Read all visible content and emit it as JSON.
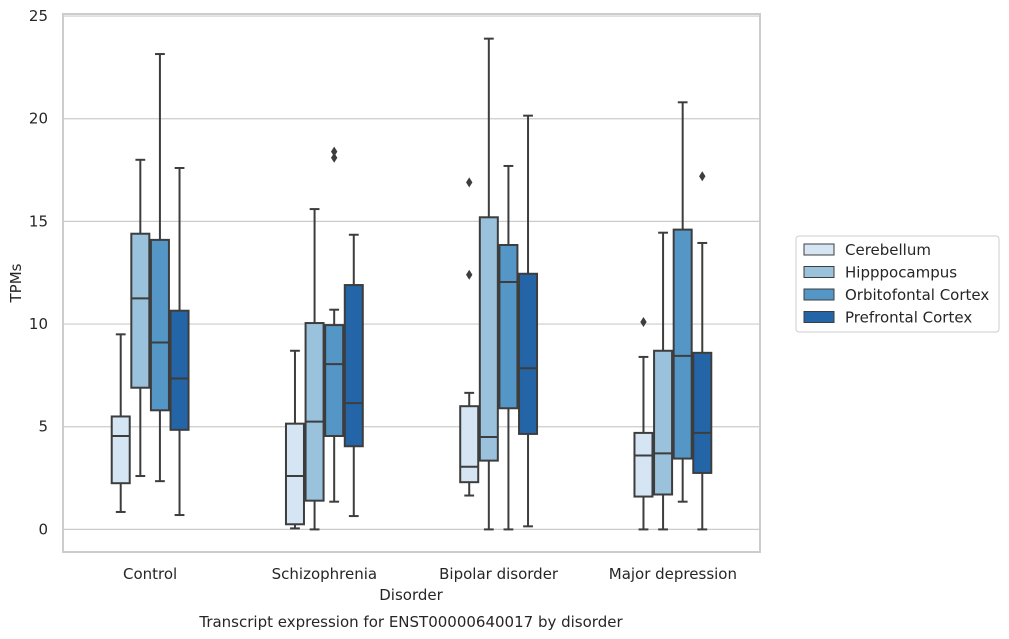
{
  "chart_data": {
    "type": "box",
    "title": "",
    "caption": "Transcript expression for ENST00000640017 by disorder",
    "xlabel": "Disorder",
    "ylabel": "TPMs",
    "ylim": [
      -1.1,
      25.1
    ],
    "yticks": [
      0,
      5,
      10,
      15,
      20,
      25
    ],
    "grid": "horizontal",
    "legend_position": "right",
    "categories": [
      "Control",
      "Schizophrenia",
      "Bipolar disorder",
      "Major depression"
    ],
    "series": [
      {
        "name": "Cerebellum",
        "color": "#d6e5f4",
        "boxes": [
          {
            "whislo": 0.85,
            "q1": 2.25,
            "med": 4.55,
            "q3": 5.5,
            "whishi": 9.5,
            "fliers": []
          },
          {
            "whislo": 0.05,
            "q1": 0.25,
            "med": 2.6,
            "q3": 5.15,
            "whishi": 8.7,
            "fliers": []
          },
          {
            "whislo": 1.65,
            "q1": 2.3,
            "med": 3.05,
            "q3": 6.0,
            "whishi": 6.65,
            "fliers": [
              12.4,
              16.9
            ]
          },
          {
            "whislo": 0.0,
            "q1": 1.6,
            "med": 3.6,
            "q3": 4.7,
            "whishi": 8.4,
            "fliers": [
              10.1
            ]
          }
        ]
      },
      {
        "name": "Hipppocampus",
        "color": "#9ac2dc",
        "boxes": [
          {
            "whislo": 2.6,
            "q1": 6.9,
            "med": 11.25,
            "q3": 14.4,
            "whishi": 18.0,
            "fliers": []
          },
          {
            "whislo": 0.0,
            "q1": 1.4,
            "med": 5.25,
            "q3": 10.05,
            "whishi": 15.6,
            "fliers": []
          },
          {
            "whislo": 0.0,
            "q1": 3.35,
            "med": 4.5,
            "q3": 15.2,
            "whishi": 23.9,
            "fliers": []
          },
          {
            "whislo": 0.0,
            "q1": 1.7,
            "med": 3.7,
            "q3": 8.7,
            "whishi": 14.45,
            "fliers": []
          }
        ]
      },
      {
        "name": "Orbitofontal Cortex",
        "color": "#5497c7",
        "boxes": [
          {
            "whislo": 2.35,
            "q1": 5.8,
            "med": 9.1,
            "q3": 14.1,
            "whishi": 23.15,
            "fliers": []
          },
          {
            "whislo": 1.35,
            "q1": 4.55,
            "med": 8.05,
            "q3": 9.95,
            "whishi": 10.7,
            "fliers": [
              18.1,
              18.4
            ]
          },
          {
            "whislo": 0.0,
            "q1": 5.9,
            "med": 12.05,
            "q3": 13.85,
            "whishi": 17.7,
            "fliers": []
          },
          {
            "whislo": 1.35,
            "q1": 3.45,
            "med": 8.45,
            "q3": 14.6,
            "whishi": 20.8,
            "fliers": []
          }
        ]
      },
      {
        "name": "Prefrontal Cortex",
        "color": "#2465a7",
        "boxes": [
          {
            "whislo": 0.7,
            "q1": 4.85,
            "med": 7.35,
            "q3": 10.65,
            "whishi": 17.6,
            "fliers": []
          },
          {
            "whislo": 0.65,
            "q1": 4.05,
            "med": 6.15,
            "q3": 11.9,
            "whishi": 14.35,
            "fliers": []
          },
          {
            "whislo": 0.15,
            "q1": 4.65,
            "med": 7.85,
            "q3": 12.45,
            "whishi": 20.15,
            "fliers": []
          },
          {
            "whislo": 0.0,
            "q1": 2.75,
            "med": 4.7,
            "q3": 8.6,
            "whishi": 13.95,
            "fliers": [
              17.2
            ]
          }
        ]
      }
    ]
  }
}
